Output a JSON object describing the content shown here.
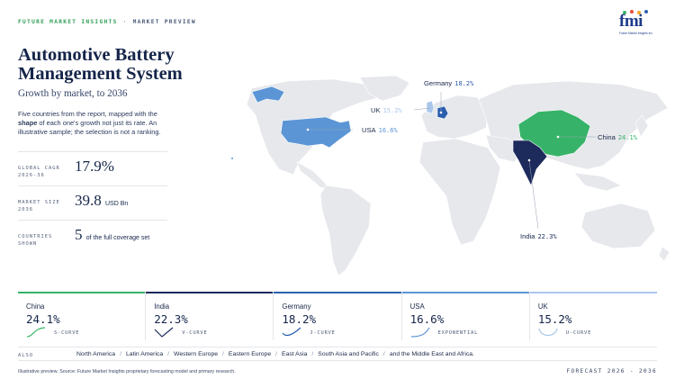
{
  "header": {
    "brand": "FUTURE MARKET INSIGHTS",
    "separator": "·",
    "section": "MARKET PREVIEW",
    "logo_text": "fmi",
    "logo_sub": "Future Market Insights Inc."
  },
  "title": "Automotive Battery Management System",
  "subtitle": "Growth by market, to 2036",
  "intro": {
    "part1": "Five countries from the report, mapped with the ",
    "bold": "shape",
    "part2": " of each one's growth not just its rate. An illustrative sample; the selection is not a ranking."
  },
  "stats": [
    {
      "label_line1": "GLOBAL CAGR",
      "label_line2": "2026-36",
      "value": "17.9%",
      "unit": ""
    },
    {
      "label_line1": "MARKET SIZE",
      "label_line2": "2036",
      "value": "39.8",
      "unit": "USD Bn"
    },
    {
      "label_line1": "COUNTRIES",
      "label_line2": "SHOWN",
      "value": "5",
      "unit": "of the full coverage set"
    }
  ],
  "callouts": [
    {
      "country": "Germany",
      "value": "18.2%"
    },
    {
      "country": "UK",
      "value": "15.2%"
    },
    {
      "country": "USA",
      "value": "16.6%"
    },
    {
      "country": "China",
      "value": "24.1%"
    },
    {
      "country": "India",
      "value": "22.3%"
    }
  ],
  "panels": [
    {
      "country": "China",
      "value": "24.1%",
      "curve": "S-CURVE",
      "color": "#36b368",
      "shape": "s-curve-icon"
    },
    {
      "country": "India",
      "value": "22.3%",
      "curve": "V-CURVE",
      "color": "#1c2a5c",
      "shape": "v-curve-icon"
    },
    {
      "country": "Germany",
      "value": "18.2%",
      "curve": "J-CURVE",
      "color": "#2b5fae",
      "shape": "j-curve-icon"
    },
    {
      "country": "USA",
      "value": "16.6%",
      "curve": "EXPONENTIAL",
      "color": "#5b95d6",
      "shape": "exponential-curve-icon"
    },
    {
      "country": "UK",
      "value": "15.2%",
      "curve": "U-CURVE",
      "color": "#a9c6ea",
      "shape": "u-curve-icon"
    }
  ],
  "also": {
    "label": "ALSO",
    "regions": [
      "North America",
      "Latin America",
      "Western Europe",
      "Eastern Europe",
      "East Asia",
      "South Asia and Pacific",
      "and the Middle East and Africa."
    ]
  },
  "footer": {
    "note": "Illustrative preview. Source: Future Market Insights proprietary forecasting model and primary research.",
    "forecast": "FORECAST 2026 - 2036"
  },
  "colors": {
    "china": "#36b368",
    "india": "#1c2a5c",
    "germany": "#2b5fae",
    "usa": "#5b95d6",
    "uk": "#a9c6ea",
    "land": "#e6e8ec"
  }
}
